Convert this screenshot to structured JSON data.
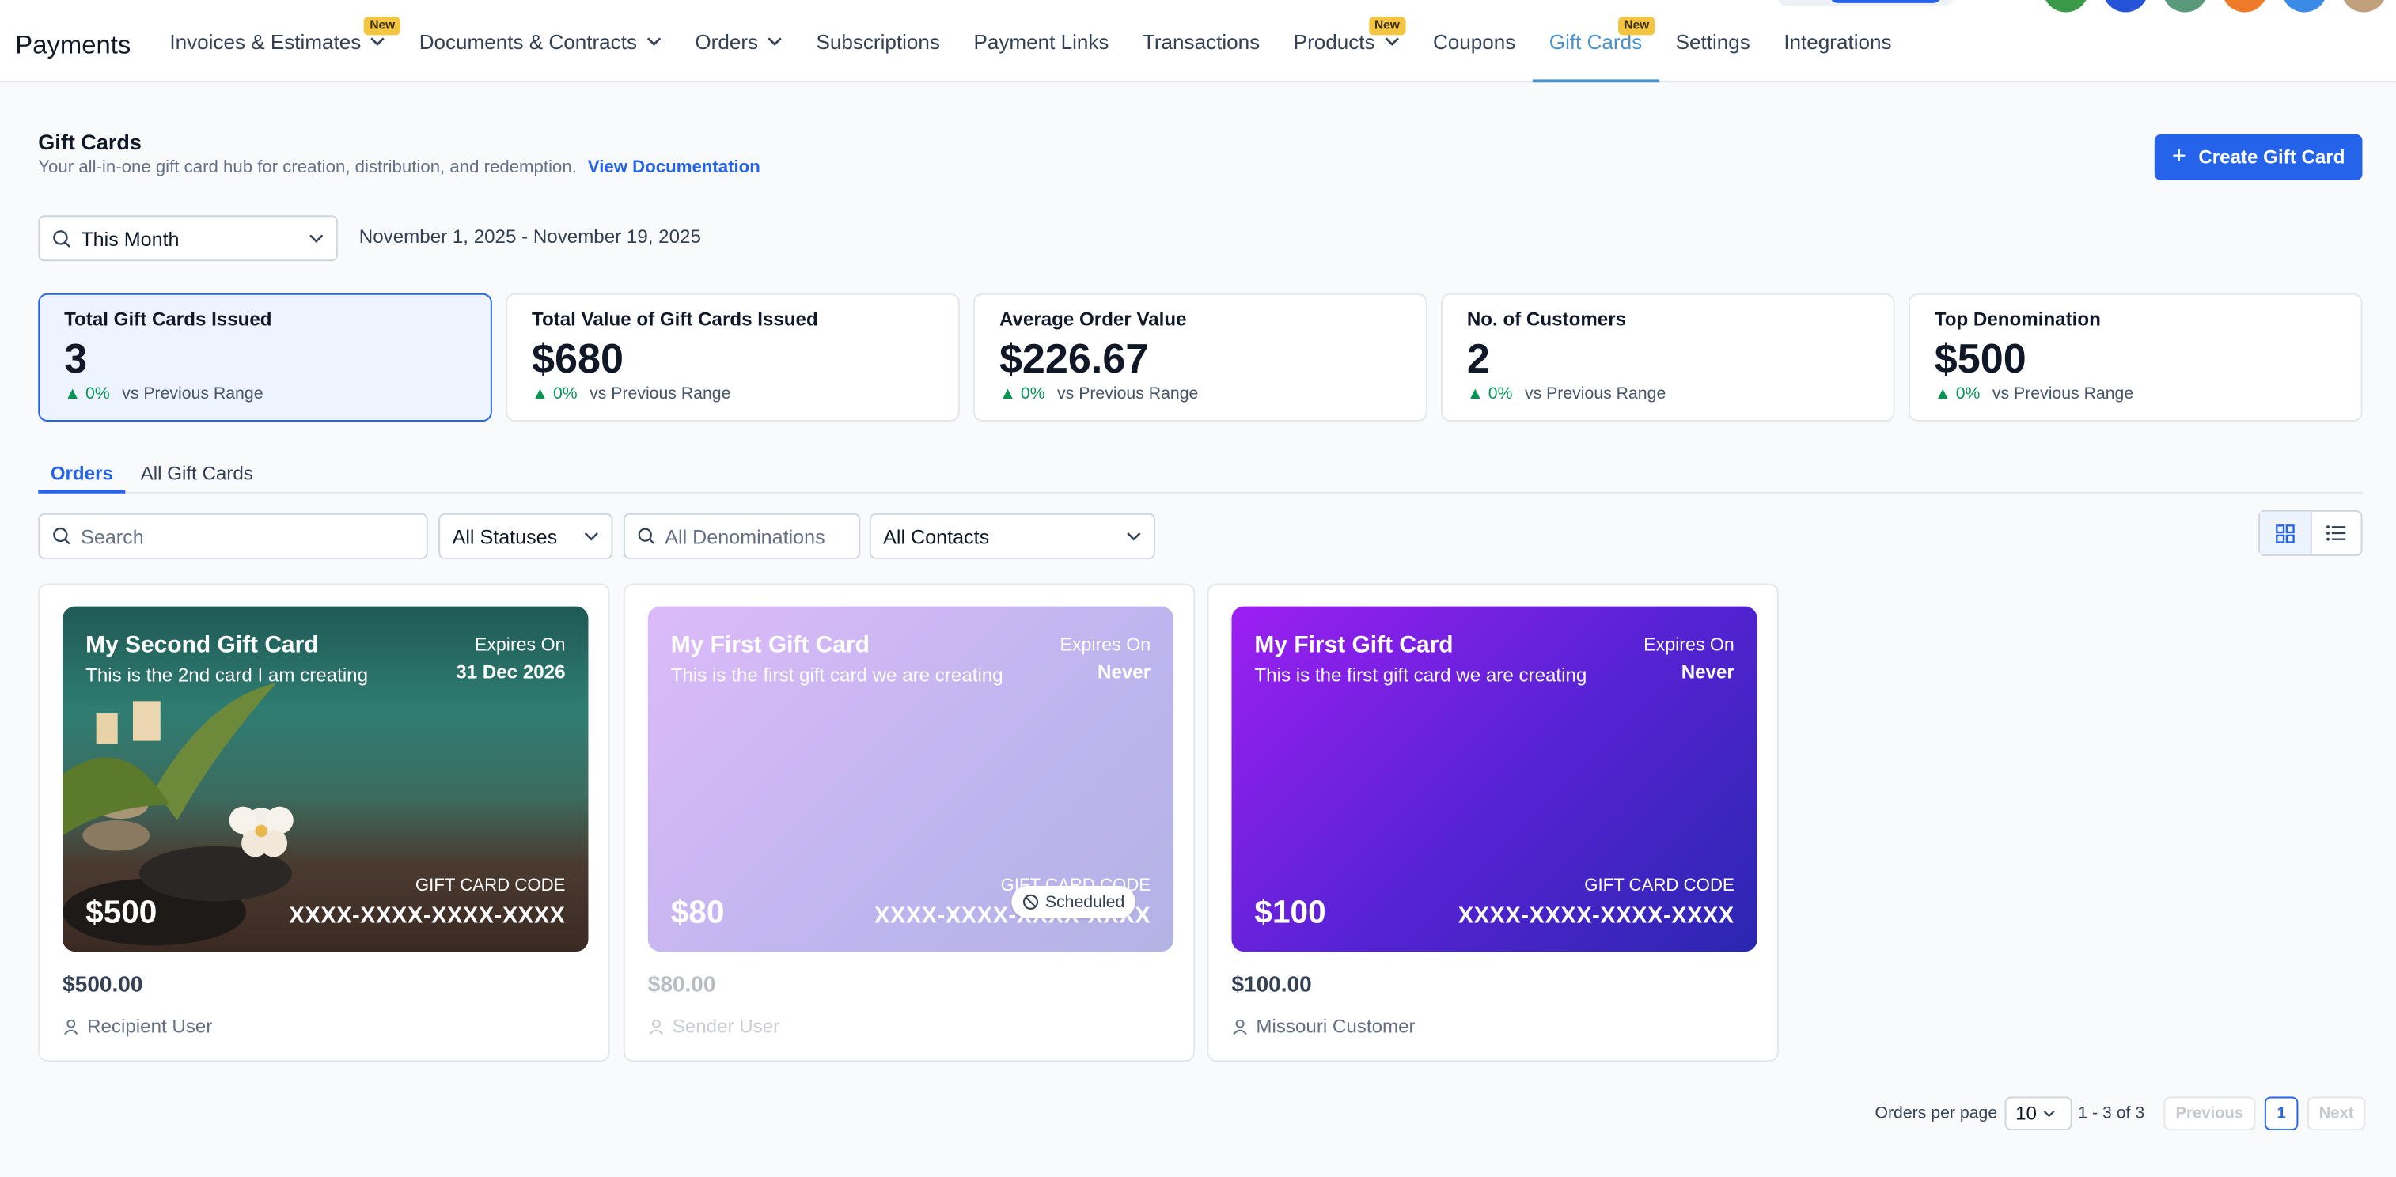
{
  "app": {
    "title": "Payments"
  },
  "nav": {
    "items": [
      {
        "label": "Invoices & Estimates",
        "dropdown": true,
        "badge": "New"
      },
      {
        "label": "Documents & Contracts",
        "dropdown": true
      },
      {
        "label": "Orders",
        "dropdown": true
      },
      {
        "label": "Subscriptions"
      },
      {
        "label": "Payment Links"
      },
      {
        "label": "Transactions"
      },
      {
        "label": "Products",
        "dropdown": true,
        "badge": "New"
      },
      {
        "label": "Coupons"
      },
      {
        "label": "Gift Cards",
        "active": true,
        "badge": "New"
      },
      {
        "label": "Settings"
      },
      {
        "label": "Integrations"
      }
    ]
  },
  "header": {
    "title": "Gift Cards",
    "subtitle": "Your all-in-one gift card hub for creation, distribution, and redemption.",
    "doc_link": "View Documentation",
    "create_label": "Create Gift Card"
  },
  "range": {
    "selected": "This Month",
    "dates": "November 1, 2025 - November 19, 2025"
  },
  "stats": [
    {
      "title": "Total Gift Cards Issued",
      "value": "3",
      "delta": "0%",
      "compare": "vs Previous Range",
      "selected": true
    },
    {
      "title": "Total Value of Gift Cards Issued",
      "value": "$680",
      "delta": "0%",
      "compare": "vs Previous Range"
    },
    {
      "title": "Average Order Value",
      "value": "$226.67",
      "delta": "0%",
      "compare": "vs Previous Range"
    },
    {
      "title": "No. of Customers",
      "value": "2",
      "delta": "0%",
      "compare": "vs Previous Range"
    },
    {
      "title": "Top Denomination",
      "value": "$500",
      "delta": "0%",
      "compare": "vs Previous Range"
    }
  ],
  "tabs": {
    "orders": "Orders",
    "all": "All Gift Cards"
  },
  "filters": {
    "search_placeholder": "Search",
    "status": "All Statuses",
    "denom_placeholder": "All Denominations",
    "contacts": "All Contacts"
  },
  "cards": [
    {
      "name": "My Second Gift Card",
      "desc": "This is the 2nd card I am creating",
      "expires_label": "Expires On",
      "expires": "31 Dec 2026",
      "price": "$500",
      "code_label": "GIFT CARD CODE",
      "code": "XXXX-XXXX-XXXX-XXXX",
      "amount": "$500.00",
      "person": "Recipient User"
    },
    {
      "name": "My First Gift Card",
      "desc": "This is the first gift card we are creating",
      "expires_label": "Expires On",
      "expires": "Never",
      "price": "$80",
      "code_label": "GIFT CARD CODE",
      "code": "XXXX-XXXX-XXXX-XXXX",
      "amount": "$80.00",
      "person": "Sender User",
      "status": "Scheduled"
    },
    {
      "name": "My First Gift Card",
      "desc": "This is the first gift card we are creating",
      "expires_label": "Expires On",
      "expires": "Never",
      "price": "$100",
      "code_label": "GIFT CARD CODE",
      "code": "XXXX-XXXX-XXXX-XXXX",
      "amount": "$100.00",
      "person": "Missouri Customer"
    }
  ],
  "pagination": {
    "per_page_label": "Orders per page",
    "per_page": "10",
    "range": "1 - 3 of 3",
    "previous": "Previous",
    "page": "1",
    "next": "Next"
  },
  "colors": {
    "accent": "#2563eb",
    "up": "#079455",
    "badge": "#f4c542"
  }
}
